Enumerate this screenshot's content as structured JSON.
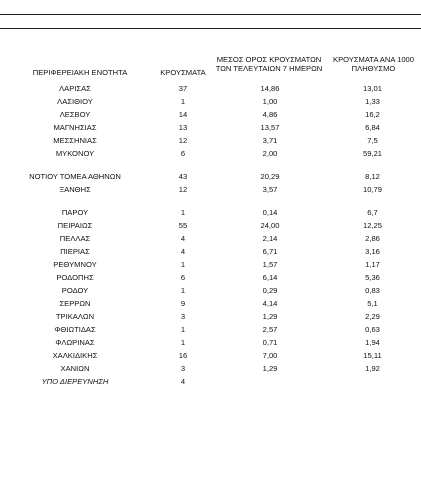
{
  "headers": {
    "region": "ΠΕΡΙΦΕΡΕΙΑΚΗ ΕΝΟΤΗΤΑ",
    "cases": "ΚΡΟΥΣΜΑΤΑ",
    "avg_line1": "ΜΕΣΟΣ ΟΡΟΣ ΚΡΟΥΣΜΑΤΩΝ",
    "avg_line2": "ΤΩΝ ΤΕΛΕΥΤΑΙΩΝ 7 ΗΜΕΡΩΝ",
    "per_line1": "ΚΡΟΥΣΜΑΤΑ ΑΝΑ 1000",
    "per_line2": "ΠΛΗΘΥΣΜΟ"
  },
  "rows": [
    {
      "region": "ΛΑΡΙΣΑΣ",
      "cases": "37",
      "avg": "14,86",
      "per": "13,01"
    },
    {
      "region": "ΛΑΣΙΘΙΟΥ",
      "cases": "1",
      "avg": "1,00",
      "per": "1,33"
    },
    {
      "region": "ΛΕΣΒΟΥ",
      "cases": "14",
      "avg": "4,86",
      "per": "16,2"
    },
    {
      "region": "ΜΑΓΝΗΣΙΑΣ",
      "cases": "13",
      "avg": "13,57",
      "per": "6,84"
    },
    {
      "region": "ΜΕΣΣΗΝΙΑΣ",
      "cases": "12",
      "avg": "3,71",
      "per": "7,5"
    },
    {
      "region": "ΜΥΚΟΝΟΥ",
      "cases": "6",
      "avg": "2,00",
      "per": "59,21"
    },
    {
      "region": "ΝΟΤΙΟΥ ΤΟΜΕΑ ΑΘΗΝΩΝ",
      "cases": "43",
      "avg": "20,29",
      "per": "8,12"
    },
    {
      "region": "ΞΑΝΘΗΣ",
      "cases": "12",
      "avg": "3,57",
      "per": "10,79"
    },
    {
      "region": "ΠΑΡΟΥ",
      "cases": "1",
      "avg": "0,14",
      "per": "6,7"
    },
    {
      "region": "ΠΕΙΡΑΙΩΣ",
      "cases": "55",
      "avg": "24,00",
      "per": "12,25"
    },
    {
      "region": "ΠΕΛΛΑΣ",
      "cases": "4",
      "avg": "2,14",
      "per": "2,86"
    },
    {
      "region": "ΠΙΕΡΙΑΣ",
      "cases": "4",
      "avg": "6,71",
      "per": "3,16"
    },
    {
      "region": "ΡΕΘΥΜΝΟΥ",
      "cases": "1",
      "avg": "1,57",
      "per": "1,17"
    },
    {
      "region": "ΡΟΔΟΠΗΣ",
      "cases": "6",
      "avg": "6,14",
      "per": "5,36"
    },
    {
      "region": "ΡΟΔΟΥ",
      "cases": "1",
      "avg": "0,29",
      "per": "0,83"
    },
    {
      "region": "ΣΕΡΡΩΝ",
      "cases": "9",
      "avg": "4,14",
      "per": "5,1"
    },
    {
      "region": "ΤΡΙΚΑΛΩΝ",
      "cases": "3",
      "avg": "1,29",
      "per": "2,29"
    },
    {
      "region": "ΦΘΙΩΤΙΔΑΣ",
      "cases": "1",
      "avg": "2,57",
      "per": "0,63"
    },
    {
      "region": "ΦΛΩΡΙΝΑΣ",
      "cases": "1",
      "avg": "0,71",
      "per": "1,94"
    },
    {
      "region": "ΧΑΛΚΙΔΙΚΗΣ",
      "cases": "16",
      "avg": "7,00",
      "per": "15,11"
    },
    {
      "region": "ΧΑΝΙΩΝ",
      "cases": "3",
      "avg": "1,29",
      "per": "1,92"
    },
    {
      "region": "ΥΠΟ ΔΙΕΡΕΥΝΗΣΗ",
      "cases": "4",
      "avg": "",
      "per": ""
    }
  ]
}
